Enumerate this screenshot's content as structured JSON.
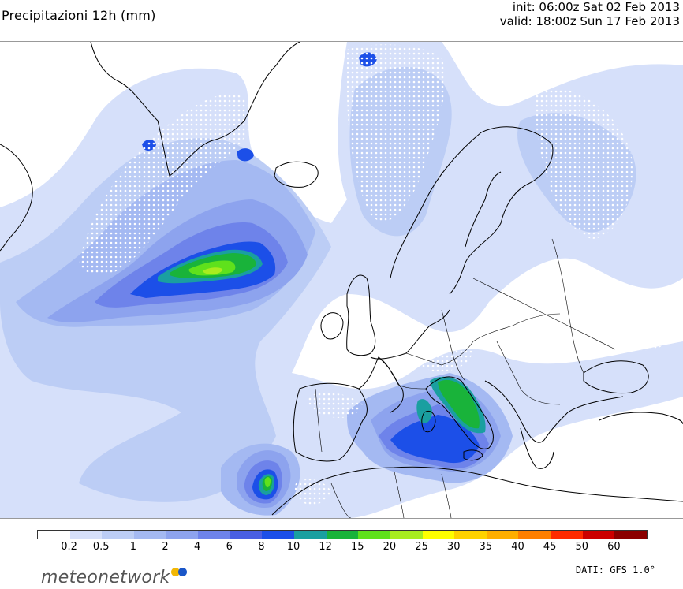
{
  "header": {
    "title": "Precipitazioni 12h (mm)",
    "init": "init: 06:00z Sat 02 Feb 2013",
    "valid": "valid: 18:00z Sun 17 Feb 2013"
  },
  "legend": {
    "labels": [
      "0.2",
      "0.5",
      "1",
      "2",
      "4",
      "6",
      "8",
      "10",
      "12",
      "15",
      "20",
      "25",
      "30",
      "35",
      "40",
      "45",
      "50",
      "60"
    ],
    "colors": [
      "#ffffff",
      "#d6e0fa",
      "#bccdf5",
      "#a4b9f2",
      "#8da3ee",
      "#6e83ea",
      "#4a5fe3",
      "#1c4fe8",
      "#1a9fa0",
      "#19b33a",
      "#5fe11c",
      "#a8ec1f",
      "#ffff00",
      "#ffd200",
      "#ffae00",
      "#ff7f00",
      "#ff2b00",
      "#cc0000",
      "#8b0000"
    ]
  },
  "footer": {
    "brand_prefix": "meteo",
    "brand_suffix": "network",
    "source": "DATI: GFS 1.0°"
  }
}
